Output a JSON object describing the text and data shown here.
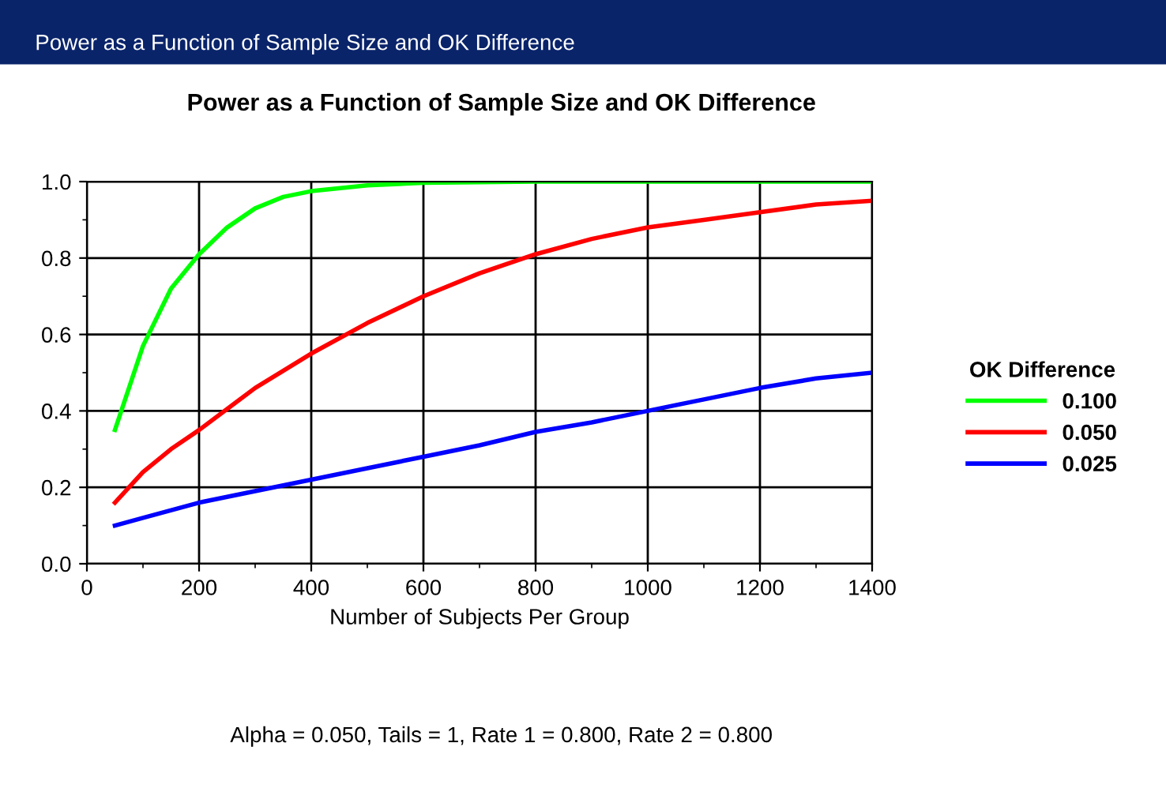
{
  "chart_data": {
    "type": "line",
    "title": "Power as a Function of Sample Size and OK Difference",
    "xlabel": "Number of Subjects Per Group",
    "legend_title": "OK Difference",
    "annotations": [
      "Power as a Function of Sample Size and OK Difference",
      "Alpha = 0.050, Tails = 1, Rate 1 = 0.800, Rate 2 = 0.800"
    ],
    "xlim": [
      0,
      1400
    ],
    "ylim": [
      0.0,
      1.0
    ],
    "xticks": [
      0,
      200,
      400,
      600,
      800,
      1000,
      1200,
      1400
    ],
    "yticks": [
      {
        "value": 0.0,
        "label": "0.0"
      },
      {
        "value": 0.2,
        "label": "0.2"
      },
      {
        "value": 0.4,
        "label": "0.4"
      },
      {
        "value": 0.6,
        "label": "0.6"
      },
      {
        "value": 0.8,
        "label": "0.8"
      },
      {
        "value": 1.0,
        "label": "1.0"
      }
    ],
    "grid": true,
    "legend": "right",
    "marker": "none",
    "line_style": "solid",
    "series": [
      {
        "name": "0.100",
        "color": "#00ff00",
        "x": [
          50,
          100,
          150,
          200,
          250,
          300,
          350,
          400,
          500,
          600,
          800,
          1000,
          1200,
          1400
        ],
        "values": [
          0.35,
          0.57,
          0.72,
          0.81,
          0.88,
          0.93,
          0.96,
          0.975,
          0.99,
          0.997,
          1.0,
          1.0,
          1.0,
          1.0
        ]
      },
      {
        "name": "0.050",
        "color": "#ff0000",
        "x": [
          50,
          100,
          150,
          200,
          300,
          400,
          500,
          600,
          700,
          800,
          900,
          1000,
          1100,
          1200,
          1300,
          1400
        ],
        "values": [
          0.16,
          0.24,
          0.3,
          0.35,
          0.46,
          0.55,
          0.63,
          0.7,
          0.76,
          0.81,
          0.85,
          0.88,
          0.9,
          0.92,
          0.94,
          0.95
        ]
      },
      {
        "name": "0.025",
        "color": "#0000ff",
        "x": [
          50,
          100,
          200,
          300,
          400,
          500,
          600,
          700,
          800,
          900,
          1000,
          1100,
          1200,
          1300,
          1400
        ],
        "values": [
          0.1,
          0.12,
          0.16,
          0.19,
          0.22,
          0.25,
          0.28,
          0.31,
          0.345,
          0.37,
          0.4,
          0.43,
          0.46,
          0.485,
          0.5
        ]
      }
    ]
  }
}
